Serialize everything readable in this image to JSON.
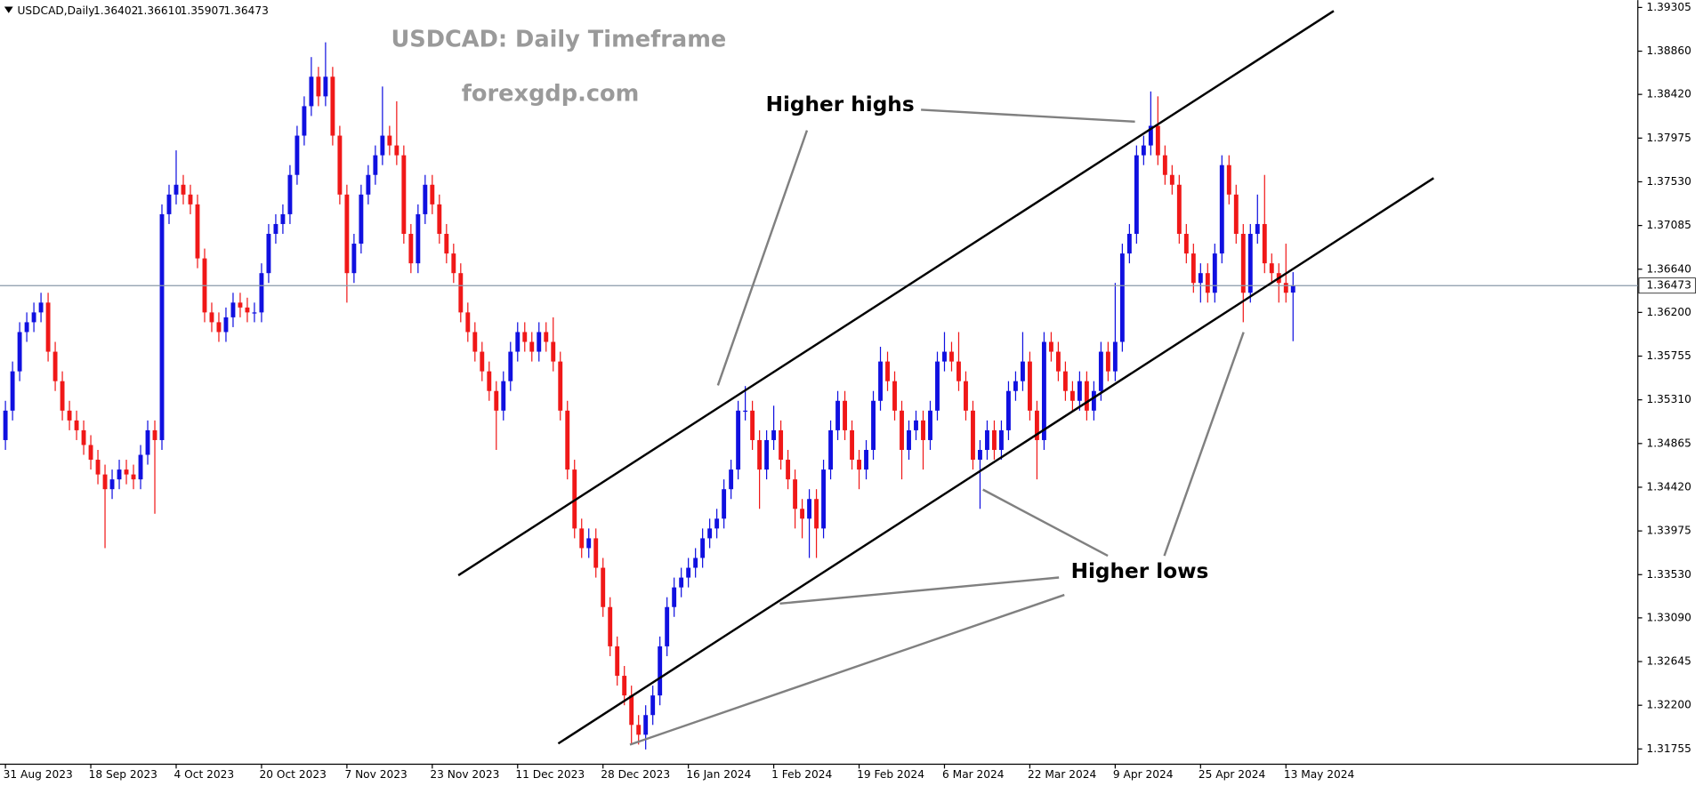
{
  "chart_data": {
    "type": "candlestick",
    "title": "USDCAD: Daily Timeframe",
    "subtitle": "forexgdp.com",
    "header": {
      "symbol": "USDCAD,Daily",
      "open": "1.36402",
      "high": "1.36610",
      "low": "1.35907",
      "close": "1.36473"
    },
    "annotations": [
      "Higher highs",
      "Higher lows"
    ],
    "up_color": "#1010e0",
    "down_color": "#f01818",
    "price_line_color": "#8a9aaa",
    "ylim": [
      1.316,
      1.3938
    ],
    "yticks": [
      1.39305,
      {
        "value": 1.3886,
        "label": "1.38860"
      },
      {
        "value": 1.3842,
        "label": "1.38420"
      },
      1.37975,
      {
        "value": 1.3753,
        "label": "1.37530"
      },
      1.37085,
      {
        "value": 1.3664,
        "label": "1.36640"
      },
      {
        "value": 1.362,
        "label": "1.36200"
      },
      1.35755,
      {
        "value": 1.3531,
        "label": "1.35310"
      },
      1.34865,
      {
        "value": 1.3442,
        "label": "1.34420"
      },
      1.33975,
      {
        "value": 1.3353,
        "label": "1.33530"
      },
      {
        "value": 1.3309,
        "label": "1.33090"
      },
      1.32645,
      {
        "value": 1.322,
        "label": "1.32200"
      },
      1.31755
    ],
    "categories": [
      "31 Aug 2023",
      null,
      null,
      null,
      null,
      null,
      null,
      null,
      null,
      null,
      null,
      null,
      "18 Sep 2023",
      null,
      null,
      null,
      null,
      null,
      null,
      null,
      null,
      null,
      null,
      null,
      "4 Oct 2023",
      null,
      null,
      null,
      null,
      null,
      null,
      null,
      null,
      null,
      null,
      null,
      "20 Oct 2023",
      null,
      null,
      null,
      null,
      null,
      null,
      null,
      null,
      null,
      null,
      null,
      "7 Nov 2023",
      null,
      null,
      null,
      null,
      null,
      null,
      null,
      null,
      null,
      null,
      null,
      "23 Nov 2023",
      null,
      null,
      null,
      null,
      null,
      null,
      null,
      null,
      null,
      null,
      null,
      "11 Dec 2023",
      null,
      null,
      null,
      null,
      null,
      null,
      null,
      null,
      null,
      null,
      null,
      "28 Dec 2023",
      null,
      null,
      null,
      null,
      null,
      null,
      null,
      null,
      null,
      null,
      null,
      "16 Jan 2024",
      null,
      null,
      null,
      null,
      null,
      null,
      null,
      null,
      null,
      null,
      null,
      "1 Feb 2024",
      null,
      null,
      null,
      null,
      null,
      null,
      null,
      null,
      null,
      null,
      null,
      "19 Feb 2024",
      null,
      null,
      null,
      null,
      null,
      null,
      null,
      null,
      null,
      null,
      null,
      "6 Mar 2024",
      null,
      null,
      null,
      null,
      null,
      null,
      null,
      null,
      null,
      null,
      null,
      "22 Mar 2024",
      null,
      null,
      null,
      null,
      null,
      null,
      null,
      null,
      null,
      null,
      null,
      "9 Apr 2024",
      null,
      null,
      null,
      null,
      null,
      null,
      null,
      null,
      null,
      null,
      null,
      "25 Apr 2024",
      null,
      null,
      null,
      null,
      null,
      null,
      null,
      null,
      null,
      null,
      null,
      "13 May 2024",
      null
    ],
    "open": [
      1.349,
      1.352,
      1.356,
      1.36,
      1.361,
      1.362,
      1.363,
      1.358,
      1.355,
      1.352,
      1.351,
      1.35,
      1.3485,
      1.347,
      1.3455,
      1.344,
      1.345,
      1.346,
      1.3455,
      1.345,
      1.3475,
      1.35,
      1.349,
      1.372,
      1.374,
      1.375,
      1.374,
      1.373,
      1.3675,
      1.362,
      1.361,
      1.36,
      1.3615,
      1.363,
      1.3625,
      1.362,
      1.362,
      1.366,
      1.37,
      1.371,
      1.372,
      1.376,
      1.38,
      1.383,
      1.386,
      1.384,
      1.386,
      1.38,
      1.374,
      1.366,
      1.369,
      1.374,
      1.376,
      1.378,
      1.38,
      1.379,
      1.378,
      1.37,
      1.367,
      1.372,
      1.375,
      1.373,
      1.37,
      1.368,
      1.366,
      1.362,
      1.36,
      1.358,
      1.356,
      1.354,
      1.352,
      1.355,
      1.358,
      1.36,
      1.359,
      1.358,
      1.36,
      1.359,
      1.357,
      1.352,
      1.346,
      1.34,
      1.338,
      1.339,
      1.336,
      1.332,
      1.328,
      1.325,
      1.323,
      1.32,
      1.319,
      1.321,
      1.323,
      1.328,
      1.332,
      1.334,
      1.335,
      1.336,
      1.337,
      1.339,
      1.34,
      1.341,
      1.344,
      1.346,
      1.352,
      1.352,
      1.349,
      1.346,
      1.349,
      1.35,
      1.347,
      1.345,
      1.342,
      1.341,
      1.343,
      1.34,
      1.346,
      1.35,
      1.353,
      1.35,
      1.347,
      1.346,
      1.348,
      1.353,
      1.357,
      1.355,
      1.352,
      1.348,
      1.35,
      1.351,
      1.349,
      1.352,
      1.357,
      1.358,
      1.357,
      1.355,
      1.352,
      1.347,
      1.348,
      1.35,
      1.348,
      1.35,
      1.354,
      1.355,
      1.357,
      1.352,
      1.349,
      1.359,
      1.358,
      1.356,
      1.354,
      1.353,
      1.355,
      1.352,
      1.354,
      1.358,
      1.356,
      1.359,
      1.368,
      1.37,
      1.378,
      1.379,
      1.381,
      1.378,
      1.376,
      1.375,
      1.37,
      1.368,
      1.365,
      1.366,
      1.364,
      1.368,
      1.377,
      1.374,
      1.37,
      1.364,
      1.37,
      1.371,
      1.367,
      1.366,
      1.365,
      1.36402
    ],
    "high": [
      1.353,
      1.357,
      1.361,
      1.362,
      1.363,
      1.364,
      1.364,
      1.359,
      1.356,
      1.353,
      1.352,
      1.351,
      1.3495,
      1.348,
      1.3465,
      1.346,
      1.347,
      1.347,
      1.3465,
      1.3485,
      1.351,
      1.351,
      1.373,
      1.375,
      1.3785,
      1.376,
      1.375,
      1.374,
      1.3685,
      1.363,
      1.362,
      1.3625,
      1.364,
      1.364,
      1.3635,
      1.363,
      1.367,
      1.371,
      1.372,
      1.373,
      1.377,
      1.381,
      1.384,
      1.388,
      1.387,
      1.3895,
      1.387,
      1.381,
      1.375,
      1.37,
      1.375,
      1.377,
      1.379,
      1.385,
      1.381,
      1.3835,
      1.379,
      1.371,
      1.373,
      1.376,
      1.376,
      1.374,
      1.371,
      1.369,
      1.367,
      1.363,
      1.361,
      1.359,
      1.357,
      1.355,
      1.356,
      1.359,
      1.361,
      1.361,
      1.36,
      1.361,
      1.361,
      1.3615,
      1.358,
      1.353,
      1.347,
      1.341,
      1.34,
      1.34,
      1.337,
      1.333,
      1.329,
      1.326,
      1.324,
      1.321,
      1.322,
      1.324,
      1.329,
      1.333,
      1.335,
      1.336,
      1.337,
      1.338,
      1.34,
      1.341,
      1.342,
      1.345,
      1.347,
      1.353,
      1.3545,
      1.353,
      1.35,
      1.35,
      1.3525,
      1.351,
      1.348,
      1.346,
      1.343,
      1.344,
      1.344,
      1.347,
      1.351,
      1.354,
      1.354,
      1.351,
      1.348,
      1.349,
      1.354,
      1.3585,
      1.358,
      1.356,
      1.353,
      1.351,
      1.352,
      1.352,
      1.353,
      1.358,
      1.36,
      1.359,
      1.36,
      1.356,
      1.353,
      1.349,
      1.351,
      1.351,
      1.351,
      1.355,
      1.356,
      1.36,
      1.358,
      1.353,
      1.36,
      1.36,
      1.359,
      1.357,
      1.355,
      1.356,
      1.356,
      1.355,
      1.359,
      1.359,
      1.365,
      1.369,
      1.371,
      1.379,
      1.38,
      1.3845,
      1.384,
      1.379,
      1.377,
      1.376,
      1.371,
      1.369,
      1.367,
      1.367,
      1.369,
      1.378,
      1.378,
      1.375,
      1.371,
      1.371,
      1.374,
      1.376,
      1.368,
      1.367,
      1.369,
      1.3661
    ],
    "low": [
      1.348,
      1.351,
      1.355,
      1.359,
      1.36,
      1.361,
      1.357,
      1.354,
      1.351,
      1.35,
      1.349,
      1.3475,
      1.346,
      1.3445,
      1.338,
      1.343,
      1.344,
      1.3445,
      1.344,
      1.344,
      1.3465,
      1.3415,
      1.348,
      1.371,
      1.373,
      1.373,
      1.372,
      1.3665,
      1.361,
      1.36,
      1.359,
      1.359,
      1.3605,
      1.3615,
      1.361,
      1.361,
      1.361,
      1.365,
      1.369,
      1.37,
      1.371,
      1.375,
      1.379,
      1.382,
      1.383,
      1.383,
      1.379,
      1.373,
      1.363,
      1.365,
      1.368,
      1.373,
      1.375,
      1.377,
      1.378,
      1.377,
      1.369,
      1.366,
      1.366,
      1.371,
      1.372,
      1.369,
      1.367,
      1.365,
      1.361,
      1.359,
      1.357,
      1.355,
      1.353,
      1.348,
      1.351,
      1.354,
      1.357,
      1.358,
      1.357,
      1.357,
      1.358,
      1.356,
      1.351,
      1.345,
      1.339,
      1.337,
      1.337,
      1.335,
      1.331,
      1.327,
      1.324,
      1.322,
      1.318,
      1.318,
      1.3175,
      1.32,
      1.322,
      1.327,
      1.331,
      1.333,
      1.334,
      1.335,
      1.336,
      1.338,
      1.339,
      1.34,
      1.343,
      1.345,
      1.351,
      1.348,
      1.342,
      1.345,
      1.348,
      1.346,
      1.344,
      1.34,
      1.339,
      1.337,
      1.337,
      1.339,
      1.345,
      1.349,
      1.349,
      1.346,
      1.344,
      1.345,
      1.347,
      1.352,
      1.354,
      1.351,
      1.345,
      1.347,
      1.349,
      1.346,
      1.348,
      1.351,
      1.356,
      1.356,
      1.354,
      1.351,
      1.346,
      1.342,
      1.347,
      1.347,
      1.347,
      1.349,
      1.353,
      1.354,
      1.351,
      1.345,
      1.348,
      1.357,
      1.355,
      1.353,
      1.352,
      1.352,
      1.351,
      1.351,
      1.353,
      1.355,
      1.355,
      1.358,
      1.367,
      1.369,
      1.377,
      1.378,
      1.377,
      1.375,
      1.374,
      1.369,
      1.367,
      1.364,
      1.363,
      1.363,
      1.363,
      1.367,
      1.373,
      1.369,
      1.361,
      1.363,
      1.369,
      1.366,
      1.365,
      1.363,
      1.363,
      1.35907
    ],
    "close": [
      1.352,
      1.356,
      1.36,
      1.361,
      1.362,
      1.363,
      1.358,
      1.355,
      1.352,
      1.351,
      1.35,
      1.3485,
      1.347,
      1.3455,
      1.344,
      1.345,
      1.346,
      1.3455,
      1.345,
      1.3475,
      1.35,
      1.349,
      1.372,
      1.374,
      1.375,
      1.374,
      1.373,
      1.3675,
      1.362,
      1.361,
      1.36,
      1.3615,
      1.363,
      1.3625,
      1.362,
      1.362,
      1.366,
      1.37,
      1.371,
      1.372,
      1.376,
      1.38,
      1.383,
      1.386,
      1.384,
      1.386,
      1.38,
      1.374,
      1.366,
      1.369,
      1.374,
      1.376,
      1.378,
      1.38,
      1.379,
      1.378,
      1.37,
      1.367,
      1.372,
      1.375,
      1.373,
      1.37,
      1.368,
      1.366,
      1.362,
      1.36,
      1.358,
      1.356,
      1.354,
      1.352,
      1.355,
      1.358,
      1.36,
      1.359,
      1.358,
      1.36,
      1.359,
      1.357,
      1.352,
      1.346,
      1.34,
      1.338,
      1.339,
      1.336,
      1.332,
      1.328,
      1.325,
      1.323,
      1.32,
      1.319,
      1.321,
      1.323,
      1.328,
      1.332,
      1.334,
      1.335,
      1.336,
      1.337,
      1.339,
      1.34,
      1.341,
      1.344,
      1.346,
      1.352,
      1.352,
      1.349,
      1.346,
      1.349,
      1.35,
      1.347,
      1.345,
      1.342,
      1.341,
      1.343,
      1.34,
      1.346,
      1.35,
      1.353,
      1.35,
      1.347,
      1.346,
      1.348,
      1.353,
      1.357,
      1.355,
      1.352,
      1.348,
      1.35,
      1.351,
      1.349,
      1.352,
      1.357,
      1.358,
      1.357,
      1.355,
      1.352,
      1.347,
      1.348,
      1.35,
      1.348,
      1.35,
      1.354,
      1.355,
      1.357,
      1.352,
      1.349,
      1.359,
      1.358,
      1.356,
      1.354,
      1.353,
      1.355,
      1.352,
      1.354,
      1.358,
      1.356,
      1.359,
      1.368,
      1.37,
      1.378,
      1.379,
      1.381,
      1.378,
      1.376,
      1.375,
      1.37,
      1.368,
      1.365,
      1.366,
      1.364,
      1.368,
      1.377,
      1.374,
      1.37,
      1.364,
      1.37,
      1.371,
      1.367,
      1.366,
      1.365,
      1.364,
      1.36473
    ]
  }
}
